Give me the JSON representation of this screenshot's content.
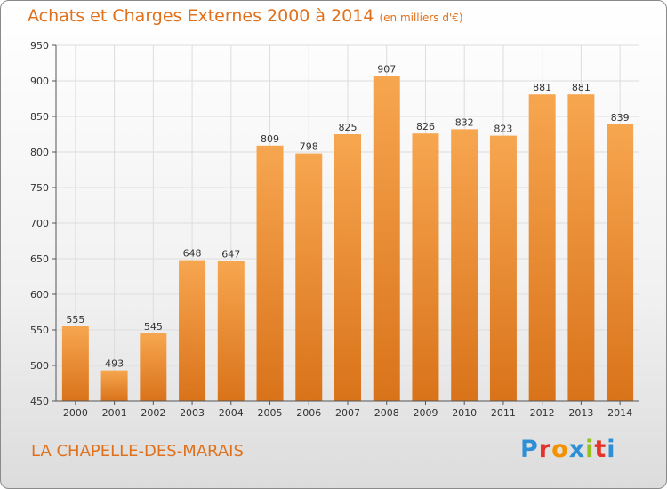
{
  "header": {
    "title": "Achats et Charges Externes 2000 à 2014",
    "unit": "(en milliers d'€)"
  },
  "footer": {
    "commune": "LA CHAPELLE-DES-MARAIS",
    "logo_letters": [
      "P",
      "r",
      "o",
      "x",
      "i",
      "t",
      "i"
    ],
    "logo_colors": [
      "#2e8fd6",
      "#e6332a",
      "#f39200",
      "#2e8fd6",
      "#95c11f",
      "#e6332a",
      "#2e8fd6"
    ]
  },
  "colors": {
    "bar_top": "#f7a650",
    "bar_bottom": "#d9731a",
    "title": "#e0711c",
    "grid": "#dddddd"
  },
  "chart_data": {
    "type": "bar",
    "categories": [
      "2000",
      "2001",
      "2002",
      "2003",
      "2004",
      "2005",
      "2006",
      "2007",
      "2008",
      "2009",
      "2010",
      "2011",
      "2012",
      "2013",
      "2014"
    ],
    "values": [
      555,
      493,
      545,
      648,
      647,
      809,
      798,
      825,
      907,
      826,
      832,
      823,
      881,
      881,
      839
    ],
    "ylim": [
      450,
      950
    ],
    "yticks": [
      450,
      500,
      550,
      600,
      650,
      700,
      750,
      800,
      850,
      900,
      950
    ],
    "grid": true,
    "title": "Achats et Charges Externes 2000 à 2014"
  }
}
